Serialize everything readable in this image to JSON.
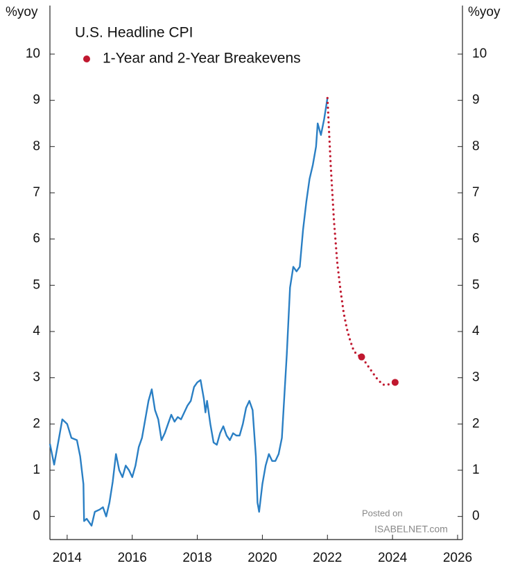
{
  "chart_data": {
    "type": "line",
    "title": "U.S. Headline CPI",
    "ylabel": "%yoy",
    "y2label": "%yoy",
    "xlim": [
      2013.47,
      2026.15
    ],
    "xticks": [
      2014,
      2016,
      2018,
      2020,
      2022,
      2024,
      2026
    ],
    "ylim": [
      -0.5,
      11.05
    ],
    "yticks": [
      0,
      1,
      2,
      3,
      4,
      5,
      6,
      7,
      8,
      9,
      10
    ],
    "y2lim": [
      -0.5,
      11.05
    ],
    "y2ticks": [
      0,
      1,
      2,
      3,
      4,
      5,
      6,
      7,
      8,
      9,
      10
    ],
    "series": [
      {
        "color": "#2a7fc4",
        "x": [
          2013.47,
          2013.6,
          2013.75,
          2013.85,
          2014.0,
          2014.13,
          2014.3,
          2014.4,
          2014.5,
          2014.52,
          2014.6,
          2014.75,
          2014.85,
          2015.0,
          2015.1,
          2015.2,
          2015.3,
          2015.4,
          2015.5,
          2015.6,
          2015.7,
          2015.8,
          2015.9,
          2016.0,
          2016.1,
          2016.2,
          2016.3,
          2016.4,
          2016.5,
          2016.6,
          2016.7,
          2016.8,
          2016.9,
          2017.0,
          2017.1,
          2017.2,
          2017.3,
          2017.4,
          2017.5,
          2017.6,
          2017.7,
          2017.8,
          2017.9,
          2018.0,
          2018.1,
          2018.2,
          2018.25,
          2018.3,
          2018.4,
          2018.5,
          2018.6,
          2018.7,
          2018.8,
          2018.9,
          2019.0,
          2019.1,
          2019.2,
          2019.3,
          2019.4,
          2019.5,
          2019.6,
          2019.7,
          2019.8,
          2019.85,
          2019.9,
          2020.0,
          2020.1,
          2020.2,
          2020.3,
          2020.4,
          2020.5,
          2020.6,
          2020.65,
          2020.75,
          2020.85,
          2020.95,
          2021.05,
          2021.15,
          2021.25,
          2021.35,
          2021.45,
          2021.55,
          2021.65,
          2021.7,
          2021.8,
          2021.9,
          2022.0
        ],
        "values": [
          1.57,
          1.12,
          1.7,
          2.1,
          2.0,
          1.7,
          1.65,
          1.3,
          0.7,
          -0.1,
          -0.05,
          -0.2,
          0.1,
          0.15,
          0.2,
          0.0,
          0.3,
          0.75,
          1.35,
          1.0,
          0.85,
          1.1,
          1.0,
          0.85,
          1.1,
          1.5,
          1.7,
          2.1,
          2.5,
          2.75,
          2.3,
          2.1,
          1.65,
          1.8,
          2.0,
          2.2,
          2.05,
          2.15,
          2.1,
          2.25,
          2.4,
          2.5,
          2.8,
          2.9,
          2.95,
          2.55,
          2.25,
          2.5,
          2.0,
          1.6,
          1.55,
          1.8,
          1.95,
          1.75,
          1.65,
          1.8,
          1.75,
          1.75,
          2.0,
          2.35,
          2.5,
          2.3,
          1.3,
          0.3,
          0.1,
          0.7,
          1.1,
          1.35,
          1.2,
          1.2,
          1.35,
          1.7,
          2.3,
          3.5,
          4.95,
          5.4,
          5.3,
          5.4,
          6.2,
          6.8,
          7.3,
          7.6,
          8.0,
          8.5,
          8.25,
          8.6,
          9.05
        ]
      },
      {
        "name": "1-Year and 2-Year Breakevens",
        "color": "#c0182f",
        "style": "dotted",
        "x": [
          2022.0,
          2022.1,
          2022.2,
          2022.3,
          2022.4,
          2022.5,
          2022.6,
          2022.7,
          2022.8,
          2022.9,
          2023.05,
          2023.3,
          2023.5,
          2023.7,
          2023.85,
          2024.08
        ],
        "values": [
          9.05,
          7.6,
          6.4,
          5.5,
          4.9,
          4.4,
          4.05,
          3.8,
          3.6,
          3.5,
          3.45,
          3.2,
          3.0,
          2.85,
          2.85,
          2.9
        ],
        "markers": {
          "x": [
            2023.05,
            2024.08
          ],
          "values": [
            3.45,
            2.9
          ]
        }
      }
    ],
    "watermark": [
      "Posted on",
      "ISABELNET.com"
    ]
  }
}
